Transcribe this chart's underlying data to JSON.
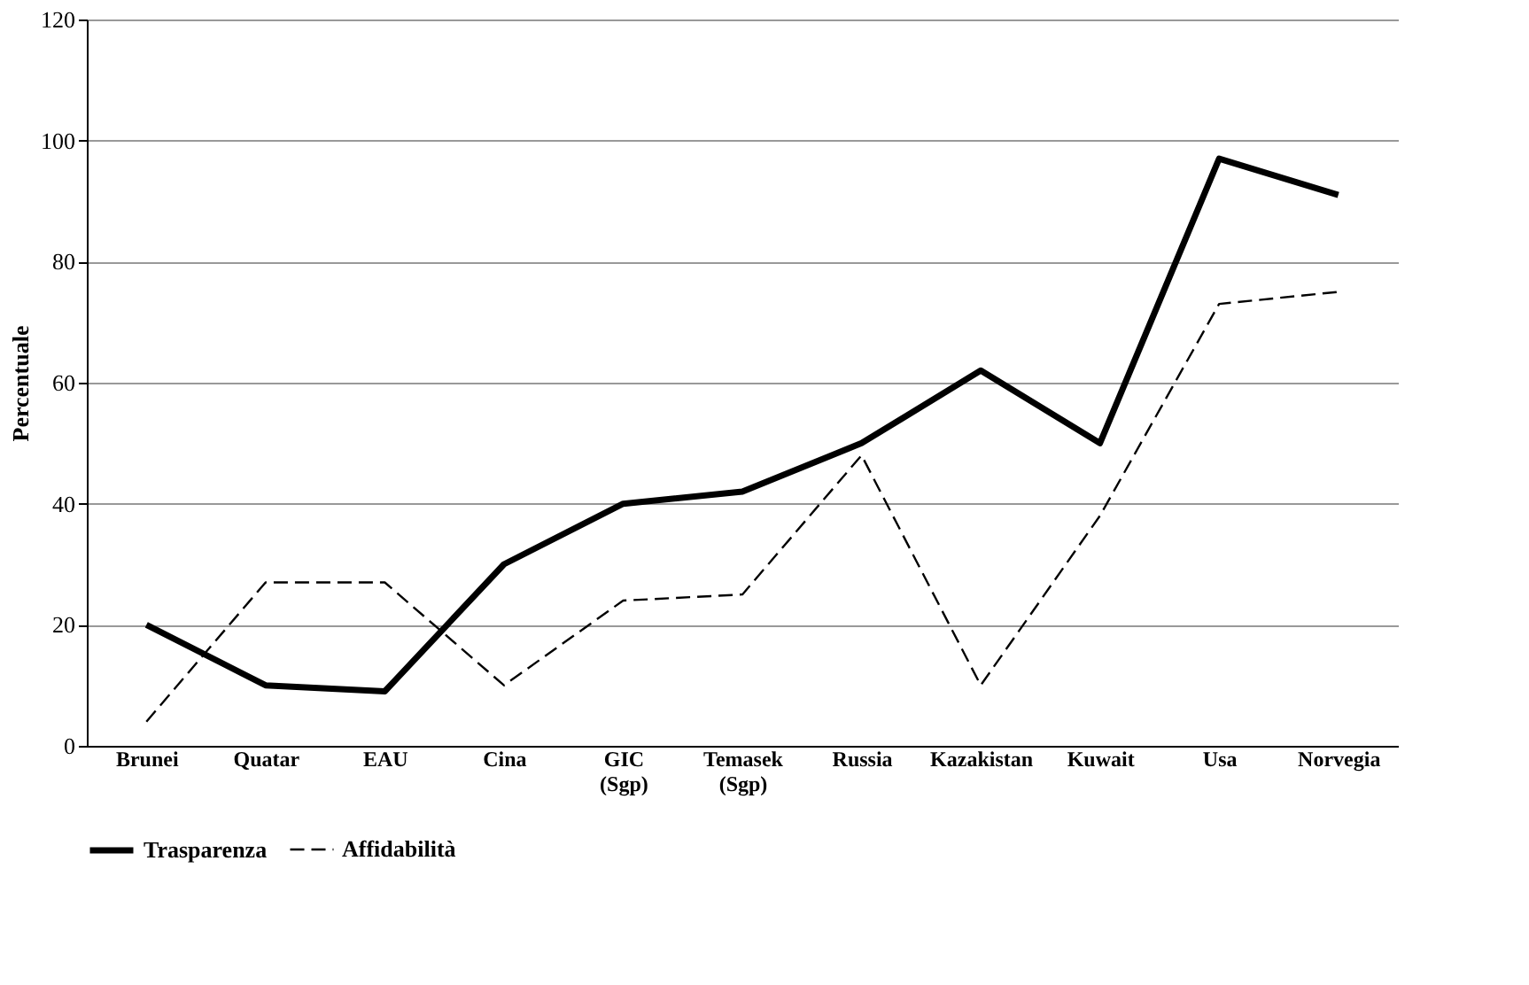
{
  "chart_data": {
    "type": "line",
    "ylabel": "Percentuale",
    "categories": [
      "Brunei",
      "Quatar",
      "EAU",
      "Cina",
      "GIC (Sgp)",
      "Temasek (Sgp)",
      "Russia",
      "Kazakistan",
      "Kuwait",
      "Usa",
      "Norvegia"
    ],
    "series": [
      {
        "name": "Trasparenza",
        "color": "#000000",
        "line_style": "solid",
        "values": [
          20,
          10,
          9,
          30,
          40,
          42,
          50,
          62,
          50,
          97,
          91
        ]
      },
      {
        "name": "Affidabilità",
        "color": "#000000",
        "line_style": "dashed",
        "values": [
          4,
          27,
          27,
          10,
          24,
          25,
          48,
          10,
          38,
          73,
          75
        ]
      }
    ],
    "ylim": [
      0,
      120
    ],
    "yticks": [
      0,
      20,
      40,
      60,
      80,
      100,
      120
    ],
    "grid": "y",
    "legend": "bottom",
    "marker": "none"
  }
}
